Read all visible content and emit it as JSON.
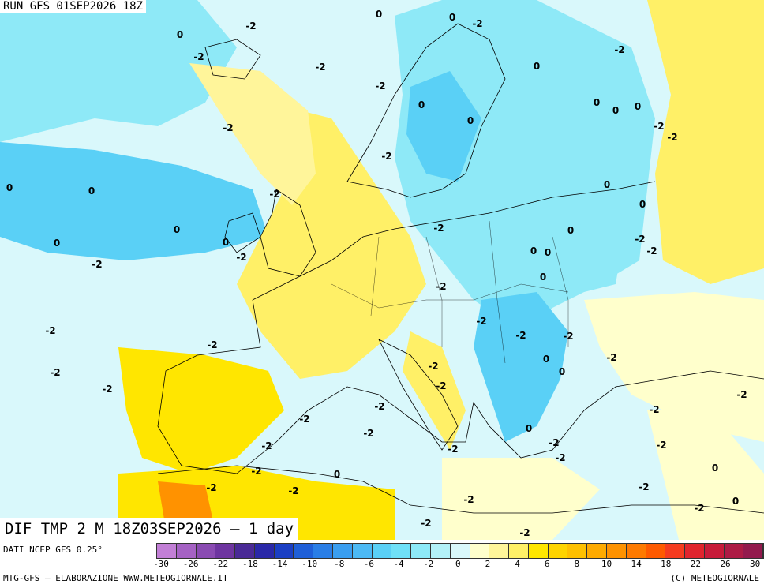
{
  "header": {
    "run": "RUN GFS 01SEP2026 18Z",
    "product": "DIF TMP 2 M 18Z03SEP2026 — 1 day"
  },
  "footer": {
    "dati": "DATI NCEP GFS 0.25°",
    "elaborazione": "MTG-GFS — ELABORAZIONE WWW.METEOGIORNALE.IT",
    "copyright": "(C) METEOGIORNALE"
  },
  "legend": {
    "colors": [
      "#c27fd6",
      "#a562c4",
      "#8a4bb2",
      "#6e35a0",
      "#4a2a96",
      "#2a28a8",
      "#1b3fc4",
      "#1f5fd8",
      "#2a7ee6",
      "#3a9ef0",
      "#4cb9f4",
      "#5ad0f6",
      "#6fe0f7",
      "#8ee9f7",
      "#b3f1f8",
      "#d9f8fb",
      "#ffffcc",
      "#fff59a",
      "#fff067",
      "#ffe600",
      "#ffd400",
      "#ffc000",
      "#ffaa00",
      "#ff9200",
      "#ff7a00",
      "#ff5a00",
      "#f53b1f",
      "#e0242e",
      "#c71b3a",
      "#ad1b45",
      "#931a4d"
    ],
    "labels": [
      "-30",
      "-26",
      "-22",
      "-18",
      "-14",
      "-10",
      "-8",
      "-6",
      "-4",
      "-2",
      "0",
      "2",
      "4",
      "6",
      "8",
      "10",
      "14",
      "18",
      "22",
      "26",
      "30"
    ]
  },
  "contour_labels": [
    "-2",
    "0"
  ]
}
